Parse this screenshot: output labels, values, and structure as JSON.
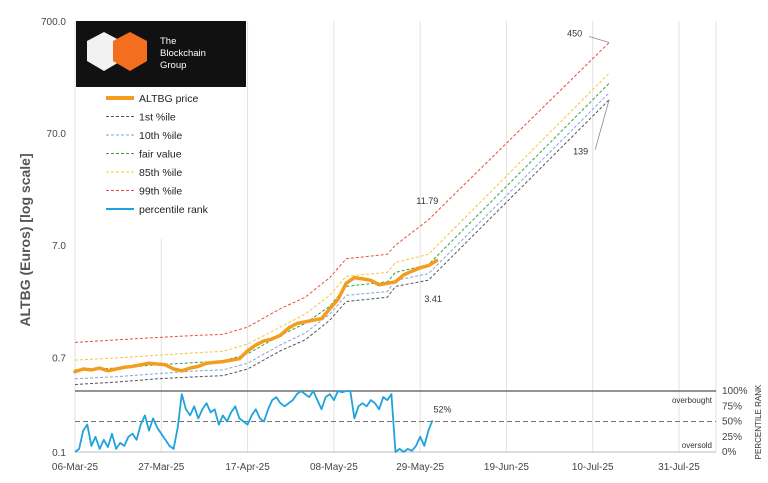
{
  "chart_data": {
    "type": "line",
    "scale": "log",
    "ylabel": "ALTBG (Euros) [log scale]",
    "y_ticks": [
      "700.0",
      "70.0",
      "7.0",
      "0.7",
      "0.1"
    ],
    "y_tick_values": [
      700,
      70,
      7,
      0.7,
      0.1
    ],
    "ylim": [
      0.1,
      700
    ],
    "x_ticks": [
      "06-Mar-25",
      "27-Mar-25",
      "17-Apr-25",
      "08-May-25",
      "29-May-25",
      "19-Jun-25",
      "10-Jul-25",
      "31-Jul-25"
    ],
    "xlim": [
      "2025-03-06",
      "2025-08-09"
    ],
    "grid": "vertical",
    "legend": "top-left",
    "logo": {
      "lines": [
        "The",
        "Blockchain",
        "Group"
      ]
    },
    "series": [
      {
        "name": "ALTBG price",
        "color": "#f39c1f",
        "style": "solid-thick",
        "points": [
          [
            0,
            0.52
          ],
          [
            2,
            0.55
          ],
          [
            4,
            0.54
          ],
          [
            6,
            0.56
          ],
          [
            8,
            0.53
          ],
          [
            10,
            0.55
          ],
          [
            12,
            0.57
          ],
          [
            14,
            0.58
          ],
          [
            16,
            0.6
          ],
          [
            18,
            0.62
          ],
          [
            20,
            0.61
          ],
          [
            22,
            0.6
          ],
          [
            24,
            0.55
          ],
          [
            26,
            0.53
          ],
          [
            28,
            0.56
          ],
          [
            30,
            0.58
          ],
          [
            32,
            0.62
          ],
          [
            34,
            0.63
          ],
          [
            36,
            0.64
          ],
          [
            38,
            0.66
          ],
          [
            40,
            0.68
          ],
          [
            42,
            0.8
          ],
          [
            44,
            0.9
          ],
          [
            46,
            0.98
          ],
          [
            48,
            1.02
          ],
          [
            50,
            1.1
          ],
          [
            52,
            1.28
          ],
          [
            54,
            1.4
          ],
          [
            56,
            1.45
          ],
          [
            58,
            1.5
          ],
          [
            60,
            1.55
          ],
          [
            62,
            1.9
          ],
          [
            64,
            2.3
          ],
          [
            66,
            3.2
          ],
          [
            68,
            3.6
          ],
          [
            70,
            3.5
          ],
          [
            72,
            3.4
          ],
          [
            74,
            3.1
          ],
          [
            76,
            3.2
          ],
          [
            78,
            3.3
          ],
          [
            80,
            3.8
          ],
          [
            82,
            4.1
          ],
          [
            84,
            4.4
          ],
          [
            86,
            4.6
          ],
          [
            88,
            5.1
          ]
        ]
      },
      {
        "name": "1st %ile",
        "color": "#555555",
        "style": "dashed",
        "points": [
          [
            0,
            0.4
          ],
          [
            10,
            0.42
          ],
          [
            20,
            0.45
          ],
          [
            30,
            0.47
          ],
          [
            36,
            0.48
          ],
          [
            42,
            0.55
          ],
          [
            50,
            0.8
          ],
          [
            56,
            1.0
          ],
          [
            62,
            1.5
          ],
          [
            66,
            2.2
          ],
          [
            76,
            2.4
          ],
          [
            78,
            3.0
          ],
          [
            86,
            3.41
          ],
          [
            130,
            139
          ]
        ]
      },
      {
        "name": "10th %ile",
        "color": "#7fa7d9",
        "style": "dashed",
        "points": [
          [
            0,
            0.45
          ],
          [
            10,
            0.47
          ],
          [
            20,
            0.5
          ],
          [
            30,
            0.53
          ],
          [
            36,
            0.54
          ],
          [
            42,
            0.62
          ],
          [
            50,
            0.9
          ],
          [
            56,
            1.15
          ],
          [
            62,
            1.7
          ],
          [
            66,
            2.5
          ],
          [
            76,
            2.7
          ],
          [
            78,
            3.4
          ],
          [
            86,
            3.9
          ],
          [
            130,
            160
          ]
        ]
      },
      {
        "name": "fair value",
        "color": "#3aa335",
        "style": "dashed",
        "points": [
          [
            0,
            0.54
          ],
          [
            10,
            0.56
          ],
          [
            20,
            0.6
          ],
          [
            30,
            0.63
          ],
          [
            36,
            0.65
          ],
          [
            42,
            0.75
          ],
          [
            50,
            1.1
          ],
          [
            56,
            1.4
          ],
          [
            62,
            2.0
          ],
          [
            66,
            3.0
          ],
          [
            76,
            3.3
          ],
          [
            78,
            4.0
          ],
          [
            86,
            4.7
          ],
          [
            130,
            195
          ]
        ]
      },
      {
        "name": "85th %ile",
        "color": "#f5c542",
        "style": "dashed",
        "points": [
          [
            0,
            0.66
          ],
          [
            10,
            0.69
          ],
          [
            20,
            0.73
          ],
          [
            30,
            0.77
          ],
          [
            36,
            0.79
          ],
          [
            42,
            0.92
          ],
          [
            50,
            1.3
          ],
          [
            56,
            1.7
          ],
          [
            62,
            2.5
          ],
          [
            66,
            3.7
          ],
          [
            76,
            4.0
          ],
          [
            78,
            4.9
          ],
          [
            86,
            5.8
          ],
          [
            130,
            240
          ]
        ]
      },
      {
        "name": "99th %ile",
        "color": "#e8503a",
        "style": "dashed",
        "points": [
          [
            0,
            0.95
          ],
          [
            10,
            1.0
          ],
          [
            20,
            1.05
          ],
          [
            30,
            1.1
          ],
          [
            36,
            1.12
          ],
          [
            42,
            1.3
          ],
          [
            50,
            1.9
          ],
          [
            56,
            2.4
          ],
          [
            62,
            3.6
          ],
          [
            66,
            5.3
          ],
          [
            76,
            5.8
          ],
          [
            78,
            7.0
          ],
          [
            86,
            11.79
          ],
          [
            130,
            450
          ]
        ]
      }
    ],
    "percentile_rank": {
      "name": "percentile rank",
      "color": "#1fa3dd",
      "right_axis_label": "PERCENTILE RANK",
      "right_ticks": [
        "100%",
        "75%",
        "50%",
        "25%",
        "0%"
      ],
      "right_tick_values": [
        100,
        75,
        50,
        25,
        0
      ],
      "overbought_label": "overbought",
      "overbought_level": 100,
      "oversold_label": "oversold",
      "midline_level": 50,
      "last_label": "52%",
      "points": [
        [
          0,
          0
        ],
        [
          1,
          5
        ],
        [
          2,
          35
        ],
        [
          3,
          45
        ],
        [
          4,
          10
        ],
        [
          5,
          25
        ],
        [
          6,
          5
        ],
        [
          7,
          20
        ],
        [
          8,
          8
        ],
        [
          9,
          30
        ],
        [
          10,
          5
        ],
        [
          11,
          15
        ],
        [
          12,
          10
        ],
        [
          13,
          25
        ],
        [
          14,
          30
        ],
        [
          15,
          20
        ],
        [
          16,
          45
        ],
        [
          17,
          60
        ],
        [
          18,
          35
        ],
        [
          19,
          55
        ],
        [
          20,
          40
        ],
        [
          21,
          30
        ],
        [
          22,
          20
        ],
        [
          23,
          10
        ],
        [
          24,
          5
        ],
        [
          25,
          40
        ],
        [
          26,
          95
        ],
        [
          27,
          70
        ],
        [
          28,
          60
        ],
        [
          29,
          75
        ],
        [
          30,
          55
        ],
        [
          31,
          70
        ],
        [
          32,
          80
        ],
        [
          33,
          65
        ],
        [
          34,
          70
        ],
        [
          35,
          45
        ],
        [
          36,
          60
        ],
        [
          37,
          50
        ],
        [
          38,
          65
        ],
        [
          39,
          75
        ],
        [
          40,
          55
        ],
        [
          41,
          50
        ],
        [
          42,
          45
        ],
        [
          43,
          60
        ],
        [
          44,
          70
        ],
        [
          45,
          55
        ],
        [
          46,
          50
        ],
        [
          47,
          70
        ],
        [
          48,
          85
        ],
        [
          49,
          90
        ],
        [
          50,
          80
        ],
        [
          51,
          75
        ],
        [
          52,
          80
        ],
        [
          53,
          85
        ],
        [
          54,
          95
        ],
        [
          55,
          100
        ],
        [
          56,
          95
        ],
        [
          57,
          90
        ],
        [
          58,
          100
        ],
        [
          59,
          85
        ],
        [
          60,
          70
        ],
        [
          61,
          90
        ],
        [
          62,
          95
        ],
        [
          63,
          85
        ],
        [
          64,
          100
        ],
        [
          65,
          98
        ],
        [
          66,
          100
        ],
        [
          67,
          100
        ],
        [
          68,
          55
        ],
        [
          69,
          75
        ],
        [
          70,
          80
        ],
        [
          71,
          75
        ],
        [
          72,
          85
        ],
        [
          73,
          80
        ],
        [
          74,
          70
        ],
        [
          75,
          90
        ],
        [
          76,
          85
        ],
        [
          77,
          95
        ],
        [
          78,
          0
        ],
        [
          79,
          5
        ],
        [
          80,
          0
        ],
        [
          81,
          5
        ],
        [
          82,
          2
        ],
        [
          83,
          10
        ],
        [
          84,
          25
        ],
        [
          85,
          10
        ],
        [
          86,
          35
        ],
        [
          87,
          52
        ]
      ]
    },
    "annotations": [
      {
        "text": "11.79",
        "series": "99th %ile"
      },
      {
        "text": "3.41",
        "series": "1st %ile"
      },
      {
        "text": "450",
        "series": "99th %ile"
      },
      {
        "text": "139",
        "series": "1st %ile"
      }
    ]
  }
}
